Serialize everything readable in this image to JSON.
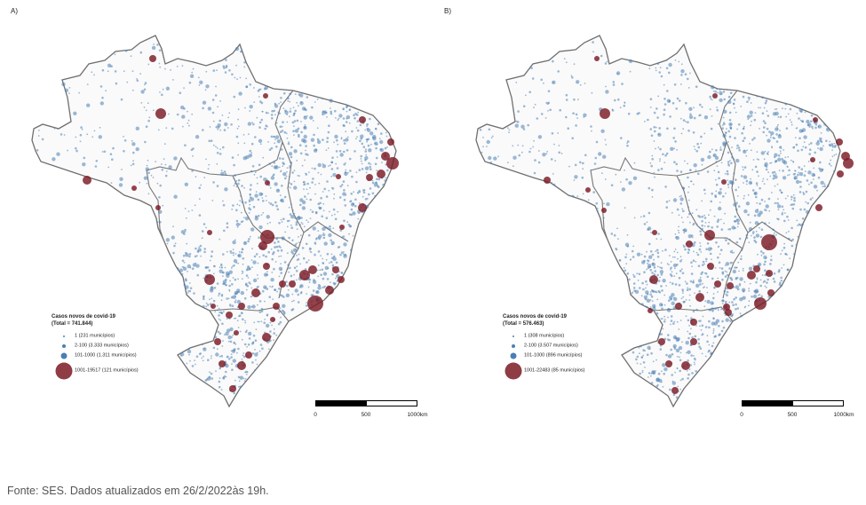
{
  "panels": [
    {
      "label": "A)",
      "legend": {
        "title": "Casos novos de covid-19",
        "total": "(Total = 741.844)",
        "classes": [
          "1 (231 municípios)",
          "2-100 (3.333 municípios)",
          "101-1000 (1.311 municípios)",
          "1001-19517 (121 municípios)"
        ]
      },
      "scale": {
        "ticks": [
          "0",
          "500",
          "1000km"
        ]
      }
    },
    {
      "label": "B)",
      "legend": {
        "title": "Casos novos de covid-19",
        "total": "(Total = 576.463)",
        "classes": [
          "1 (308 municípios)",
          "2-100 (3.507 municípios)",
          "101-1000 (896 municípios)",
          "1001-22483 (85 municípios)"
        ]
      },
      "scale": {
        "ticks": [
          "0",
          "500",
          "1000km"
        ]
      }
    }
  ],
  "colors": {
    "small_cases": "#4a7fb5",
    "large_cases": "#7b1a24",
    "border": "#777777"
  },
  "caption": "Fonte: SES. Dados atualizados em 26/2/2022às 19h."
}
